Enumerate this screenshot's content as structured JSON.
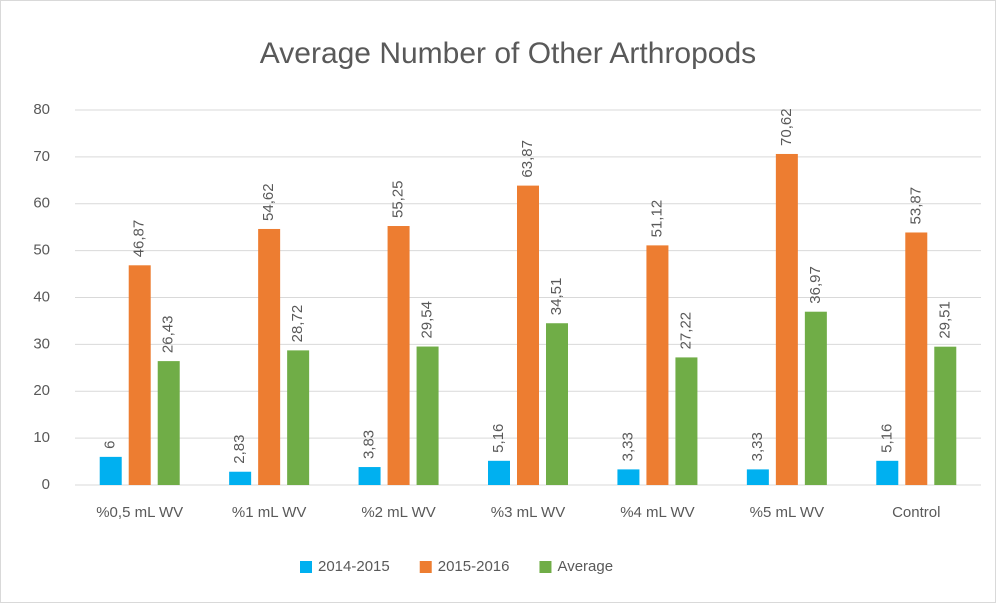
{
  "chart_data": {
    "type": "bar",
    "title": "Average Number of Other Arthropods",
    "categories": [
      "%0,5 mL WV",
      "%1 mL WV",
      "%2 mL WV",
      "%3 mL WV",
      "%4 mL WV",
      "%5 mL WV",
      "Control"
    ],
    "series": [
      {
        "name": "2014-2015",
        "color": "#00b0f0",
        "values": [
          6,
          2.83,
          3.83,
          5.16,
          3.33,
          3.33,
          5.16
        ],
        "value_labels": [
          "6",
          "2,83",
          "3,83",
          "5,16",
          "3,33",
          "3,33",
          "5,16"
        ]
      },
      {
        "name": "2015-2016",
        "color": "#ed7d31",
        "values": [
          46.87,
          54.62,
          55.25,
          63.87,
          51.12,
          70.62,
          53.87
        ],
        "value_labels": [
          "46,87",
          "54,62",
          "55,25",
          "63,87",
          "51,12",
          "70,62",
          "53,87"
        ]
      },
      {
        "name": "Average",
        "color": "#70ad47",
        "values": [
          26.43,
          28.72,
          29.54,
          34.51,
          27.22,
          36.97,
          29.51
        ],
        "value_labels": [
          "26,43",
          "28,72",
          "29,54",
          "34,51",
          "27,22",
          "36,97",
          "29,51"
        ]
      }
    ],
    "ylim": [
      0,
      80
    ],
    "yticks": [
      0,
      10,
      20,
      30,
      40,
      50,
      60,
      70,
      80
    ],
    "grid": true,
    "legend": "bottom"
  }
}
